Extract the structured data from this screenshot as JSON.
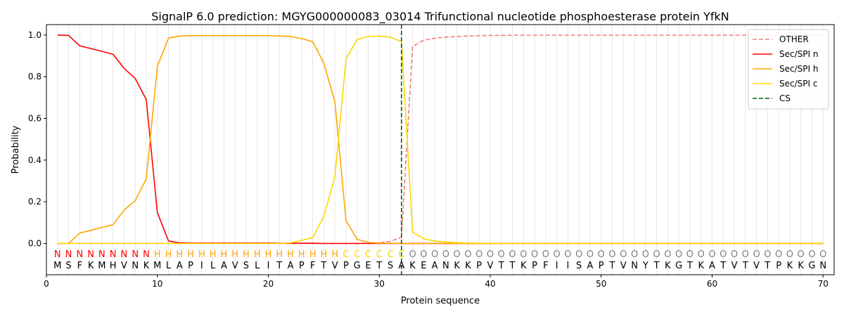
{
  "chart_data": {
    "type": "line",
    "title": "SignalP 6.0 prediction: MGYG000000083_03014 Trifunctional nucleotide phosphoesterase protein YfkN",
    "xlabel": "Protein sequence",
    "ylabel": "Probability",
    "xlim": [
      0,
      71
    ],
    "ylim": [
      -0.15,
      1.05
    ],
    "xticks": [
      0,
      10,
      20,
      30,
      40,
      50,
      60,
      70
    ],
    "yticks": [
      0.0,
      0.2,
      0.4,
      0.6,
      0.8,
      1.0
    ],
    "ytick_labels": [
      "0.0",
      "0.2",
      "0.4",
      "0.6",
      "0.8",
      "1.0"
    ],
    "grid": "vertical",
    "legend_position": "top-right",
    "sequence": [
      "M",
      "S",
      "F",
      "K",
      "M",
      "H",
      "V",
      "N",
      "K",
      "M",
      "L",
      "A",
      "P",
      "I",
      "L",
      "A",
      "V",
      "S",
      "L",
      "I",
      "T",
      "A",
      "P",
      "F",
      "T",
      "V",
      "P",
      "G",
      "E",
      "T",
      "S",
      "A",
      "K",
      "E",
      "A",
      "N",
      "K",
      "K",
      "P",
      "V",
      "T",
      "T",
      "K",
      "P",
      "F",
      "I",
      "I",
      "S",
      "A",
      "P",
      "T",
      "V",
      "N",
      "Y",
      "T",
      "K",
      "G",
      "T",
      "K",
      "A",
      "T",
      "V",
      "T",
      "V",
      "T",
      "P",
      "K",
      "K",
      "G",
      "N"
    ],
    "region_labels": [
      "N",
      "N",
      "N",
      "N",
      "N",
      "N",
      "N",
      "N",
      "N",
      "H",
      "H",
      "H",
      "H",
      "H",
      "H",
      "H",
      "H",
      "H",
      "H",
      "H",
      "H",
      "H",
      "H",
      "H",
      "H",
      "H",
      "C",
      "C",
      "C",
      "C",
      "C",
      "C",
      "O",
      "O",
      "O",
      "O",
      "O",
      "O",
      "O",
      "O",
      "O",
      "O",
      "O",
      "O",
      "O",
      "O",
      "O",
      "O",
      "O",
      "O",
      "O",
      "O",
      "O",
      "O",
      "O",
      "O",
      "O",
      "O",
      "O",
      "O",
      "O",
      "O",
      "O",
      "O",
      "O",
      "O",
      "O",
      "O",
      "O",
      "O"
    ],
    "region_colors": {
      "N": "#ff0000",
      "H": "#ffa500",
      "C": "#ffd700",
      "O": "#808080"
    },
    "series": [
      {
        "name": "OTHER",
        "color": "#f08080",
        "dash": "dashed",
        "values": [
          0,
          0,
          0,
          0,
          0,
          0,
          0,
          0,
          0,
          0,
          0,
          0,
          0,
          0,
          0,
          0,
          0,
          0,
          0,
          0,
          0,
          0,
          0,
          0,
          0,
          0,
          0,
          0,
          0.001,
          0.003,
          0.01,
          0.03,
          0.945,
          0.975,
          0.985,
          0.99,
          0.993,
          0.995,
          0.997,
          0.998,
          0.998,
          0.999,
          0.999,
          0.999,
          0.999,
          0.999,
          0.999,
          0.999,
          0.999,
          0.999,
          0.999,
          0.999,
          0.999,
          0.999,
          0.999,
          0.999,
          0.999,
          0.999,
          0.999,
          0.999,
          0.999,
          0.999,
          0.999,
          0.999,
          0.999,
          0.999,
          0.999,
          0.999,
          0.999,
          0.999
        ]
      },
      {
        "name": "Sec/SPI n",
        "color": "#ff0000",
        "dash": "solid",
        "values": [
          1.0,
          0.998,
          0.948,
          0.935,
          0.922,
          0.908,
          0.84,
          0.792,
          0.69,
          0.148,
          0.012,
          0.003,
          0.002,
          0.002,
          0.002,
          0.002,
          0.002,
          0.002,
          0.002,
          0.002,
          0.001,
          0.001,
          0.001,
          0.001,
          0,
          0,
          0,
          0,
          0,
          0,
          0,
          0,
          0,
          0,
          0,
          0,
          0,
          0,
          0,
          0,
          0,
          0,
          0,
          0,
          0,
          0,
          0,
          0,
          0,
          0,
          0,
          0,
          0,
          0,
          0,
          0,
          0,
          0,
          0,
          0,
          0,
          0,
          0,
          0,
          0,
          0,
          0,
          0,
          0,
          0
        ]
      },
      {
        "name": "Sec/SPI h",
        "color": "#ffa500",
        "dash": "solid",
        "values": [
          0,
          0,
          0.05,
          0.063,
          0.077,
          0.09,
          0.16,
          0.205,
          0.31,
          0.85,
          0.985,
          0.995,
          0.997,
          0.997,
          0.997,
          0.997,
          0.997,
          0.997,
          0.997,
          0.997,
          0.995,
          0.993,
          0.983,
          0.968,
          0.865,
          0.68,
          0.11,
          0.02,
          0.005,
          0.002,
          0.001,
          0,
          0,
          0,
          0,
          0,
          0,
          0,
          0,
          0,
          0,
          0,
          0,
          0,
          0,
          0,
          0,
          0,
          0,
          0,
          0,
          0,
          0,
          0,
          0,
          0,
          0,
          0,
          0,
          0,
          0,
          0,
          0,
          0,
          0,
          0,
          0,
          0,
          0,
          0
        ]
      },
      {
        "name": "Sec/SPI c",
        "color": "#ffd700",
        "dash": "solid",
        "values": [
          0,
          0,
          0,
          0,
          0,
          0,
          0,
          0,
          0,
          0,
          0,
          0,
          0,
          0,
          0,
          0,
          0,
          0,
          0,
          0,
          0,
          0.003,
          0.015,
          0.028,
          0.13,
          0.32,
          0.885,
          0.978,
          0.993,
          0.995,
          0.99,
          0.968,
          0.055,
          0.022,
          0.012,
          0.007,
          0.004,
          0.002,
          0.001,
          0.001,
          0,
          0,
          0,
          0,
          0,
          0,
          0,
          0,
          0,
          0,
          0,
          0,
          0,
          0,
          0,
          0,
          0,
          0,
          0,
          0,
          0,
          0,
          0,
          0,
          0,
          0,
          0,
          0,
          0,
          0
        ]
      }
    ],
    "cs": {
      "name": "CS",
      "x": 32,
      "color": "#006400"
    }
  }
}
